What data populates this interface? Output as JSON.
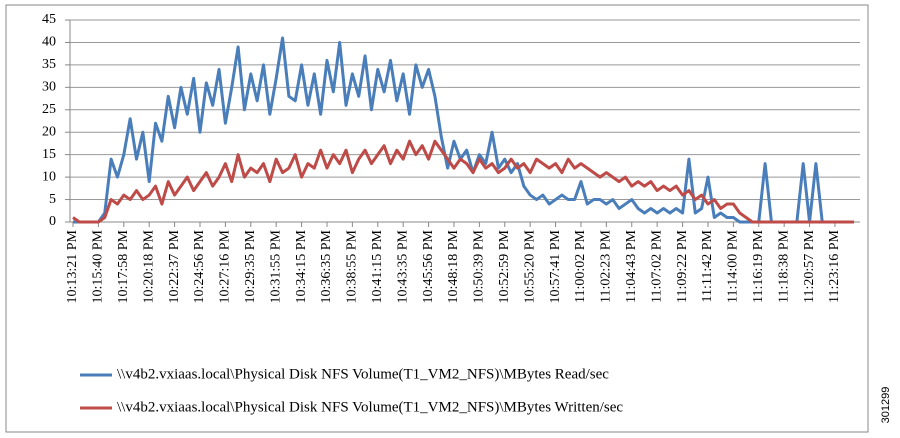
{
  "chart_data": {
    "type": "line",
    "categories": [
      "10:13:21 PM",
      null,
      null,
      null,
      "10:15:40 PM",
      null,
      null,
      null,
      "10:17:58 PM",
      null,
      null,
      null,
      "10:20:18 PM",
      null,
      null,
      null,
      "10:22:37 PM",
      null,
      null,
      null,
      "10:24:56 PM",
      null,
      null,
      null,
      "10:27:16 PM",
      null,
      null,
      null,
      "10:29:35 PM",
      null,
      null,
      null,
      "10:31:55 PM",
      null,
      null,
      null,
      "10:34:15 PM",
      null,
      null,
      null,
      "10:36:35 PM",
      null,
      null,
      null,
      "10:38:55 PM",
      null,
      null,
      null,
      "10:41:15 PM",
      null,
      null,
      null,
      "10:43:35 PM",
      null,
      null,
      null,
      "10:45:56 PM",
      null,
      null,
      null,
      "10:48:18 PM",
      null,
      null,
      null,
      "10:50:39 PM",
      null,
      null,
      null,
      "10:52:59 PM",
      null,
      null,
      null,
      "10:55:20 PM",
      null,
      null,
      null,
      "10:57:41 PM",
      null,
      null,
      null,
      "11:00:02 PM",
      null,
      null,
      null,
      "11:02:23 PM",
      null,
      null,
      null,
      "11:04:43 PM",
      null,
      null,
      null,
      "11:07:02 PM",
      null,
      null,
      null,
      "11:09:22 PM",
      null,
      null,
      null,
      "11:11:42 PM",
      null,
      null,
      null,
      "11:14:00 PM",
      null,
      null,
      null,
      "11:16:19 PM",
      null,
      null,
      null,
      "11:18:38 PM",
      null,
      null,
      null,
      "11:20:57 PM",
      null,
      null,
      null,
      "11:23:16 PM",
      null,
      null,
      null
    ],
    "series": [
      {
        "name": "\\\\v4b2.vxiaas.local\\Physical Disk NFS Volume(T1_VM2_NFS)\\MBytes Read/sec",
        "color": "#4a7ebb",
        "values": [
          0,
          0,
          0,
          0,
          0,
          2,
          14,
          10,
          15,
          23,
          14,
          20,
          9,
          22,
          18,
          28,
          21,
          30,
          24,
          32,
          20,
          31,
          26,
          34,
          22,
          30,
          39,
          25,
          33,
          27,
          35,
          24,
          32,
          41,
          28,
          27,
          35,
          26,
          33,
          24,
          36,
          29,
          40,
          26,
          33,
          28,
          37,
          25,
          34,
          29,
          36,
          27,
          33,
          24,
          35,
          30,
          34,
          28,
          19,
          12,
          18,
          14,
          16,
          11,
          15,
          13,
          20,
          12,
          14,
          11,
          13,
          8,
          6,
          5,
          6,
          4,
          5,
          6,
          5,
          5,
          9,
          4,
          5,
          5,
          4,
          5,
          3,
          4,
          5,
          3,
          2,
          3,
          2,
          3,
          2,
          3,
          2,
          14,
          2,
          3,
          10,
          1,
          2,
          1,
          1,
          0,
          0,
          0,
          0,
          13,
          0,
          0,
          0,
          0,
          0,
          13,
          0,
          13,
          0,
          0,
          0,
          0,
          0,
          0
        ]
      },
      {
        "name": "\\\\v4b2.vxiaas.local\\Physical Disk NFS Volume(T1_VM2_NFS)\\MBytes Written/sec",
        "color": "#be4b48",
        "values": [
          1,
          0,
          0,
          0,
          0,
          1,
          5,
          4,
          6,
          5,
          7,
          5,
          6,
          8,
          4,
          9,
          6,
          8,
          10,
          7,
          9,
          11,
          8,
          10,
          13,
          9,
          15,
          10,
          12,
          11,
          13,
          9,
          14,
          11,
          12,
          15,
          10,
          13,
          12,
          16,
          12,
          15,
          13,
          16,
          11,
          14,
          16,
          13,
          15,
          17,
          13,
          16,
          14,
          18,
          15,
          17,
          14,
          18,
          16,
          14,
          12,
          14,
          13,
          11,
          14,
          12,
          13,
          11,
          12,
          14,
          12,
          13,
          11,
          14,
          13,
          12,
          13,
          11,
          14,
          12,
          13,
          12,
          11,
          10,
          11,
          10,
          9,
          10,
          8,
          9,
          8,
          9,
          7,
          8,
          7,
          8,
          6,
          7,
          5,
          6,
          4,
          5,
          3,
          4,
          4,
          2,
          1,
          0,
          0,
          0,
          0,
          0,
          0,
          0,
          0,
          0,
          0,
          0,
          0,
          0,
          0,
          0,
          0,
          0
        ]
      }
    ],
    "ylim": [
      0,
      45
    ],
    "yticks": [
      0,
      5,
      10,
      15,
      20,
      25,
      30,
      35,
      40,
      45
    ],
    "grid": true
  },
  "figure_id": "301299"
}
